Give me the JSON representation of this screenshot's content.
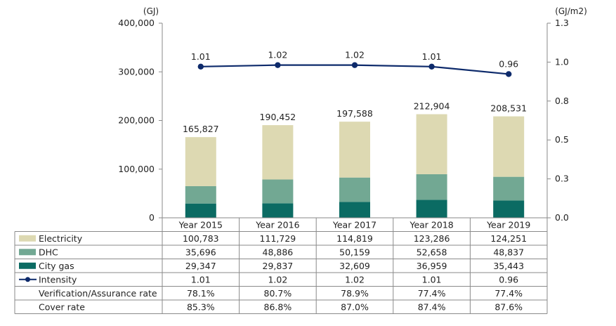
{
  "chart_data": {
    "type": "bar",
    "stacked": true,
    "categories": [
      "Year 2015",
      "Year 2016",
      "Year 2017",
      "Year 2018",
      "Year 2019"
    ],
    "y_left": {
      "unit": "(GJ)",
      "lim": [
        0,
        400000
      ],
      "ticks": [
        "0",
        "100,000",
        "200,000",
        "300,000",
        "400,000"
      ],
      "tick_values": [
        0,
        100000,
        200000,
        300000,
        400000
      ]
    },
    "y_right": {
      "unit": "(GJ/m2)",
      "lim": [
        0,
        1.3
      ],
      "ticks": [
        "0.0",
        "0.3",
        "0.5",
        "0.8",
        "1.0",
        "1.3"
      ],
      "tick_values": [
        0,
        0.26,
        0.52,
        0.78,
        1.04,
        1.3
      ]
    },
    "series": [
      {
        "name": "City gas",
        "color": "#0b6b63",
        "values": [
          29347,
          29837,
          32609,
          36959,
          35443
        ],
        "labels": [
          "29,347",
          "29,837",
          "32,609",
          "36,959",
          "35,443"
        ]
      },
      {
        "name": "DHC",
        "color": "#72a893",
        "values": [
          35696,
          48886,
          50159,
          52658,
          48837
        ],
        "labels": [
          "35,696",
          "48,886",
          "50,159",
          "52,658",
          "48,837"
        ]
      },
      {
        "name": "Electricity",
        "color": "#ddd9b2",
        "values": [
          100783,
          111729,
          114819,
          123286,
          124251
        ],
        "labels": [
          "100,783",
          "111,729",
          "114,819",
          "123,286",
          "124,251"
        ]
      }
    ],
    "totals": {
      "values": [
        165827,
        190452,
        197588,
        212904,
        208531
      ],
      "labels": [
        "165,827",
        "190,452",
        "197,588",
        "212,904",
        "208,531"
      ]
    },
    "line": {
      "name": "Intensity",
      "color": "#0d2a6b",
      "axis": "right",
      "values": [
        1.01,
        1.02,
        1.02,
        1.01,
        0.96
      ],
      "labels": [
        "1.01",
        "1.02",
        "1.02",
        "1.01",
        "0.96"
      ]
    },
    "table_extra_rows": [
      {
        "name": "Verification/Assurance rate",
        "labels": [
          "78.1%",
          "80.7%",
          "78.9%",
          "77.4%",
          "77.4%"
        ]
      },
      {
        "name": "Cover rate",
        "labels": [
          "85.3%",
          "86.8%",
          "87.0%",
          "87.4%",
          "87.6%"
        ]
      }
    ]
  }
}
